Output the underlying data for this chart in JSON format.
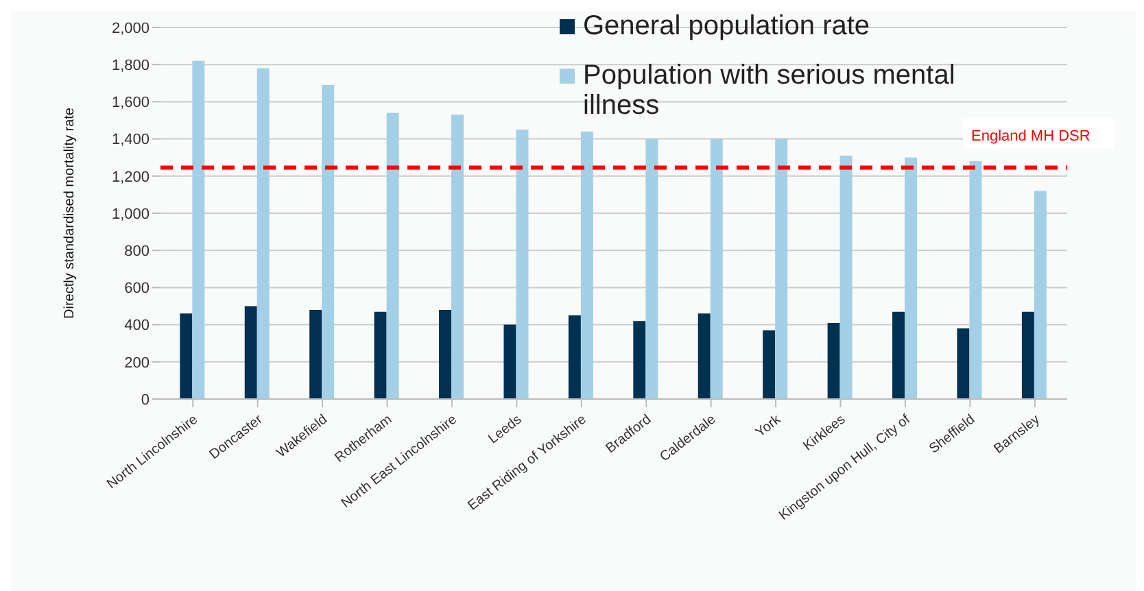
{
  "chart_data": {
    "type": "bar",
    "ylabel": "Directly standardised mortality rate",
    "categories": [
      "North Lincolnshire",
      "Doncaster",
      "Wakefield",
      "Rotherham",
      "North East Lincolnshire",
      "Leeds",
      "East Riding of Yorkshire",
      "Bradford",
      "Calderdale",
      "York",
      "Kirklees",
      "Kingston upon Hull, City of",
      "Sheffield",
      "Barnsley"
    ],
    "series": [
      {
        "name": "General population rate",
        "color": "#003150",
        "values": [
          460,
          500,
          480,
          470,
          480,
          400,
          450,
          420,
          460,
          370,
          410,
          470,
          380,
          470
        ]
      },
      {
        "name": "Population with serious mental illness",
        "color": "#a3d0e7",
        "values": [
          1820,
          1780,
          1690,
          1540,
          1530,
          1450,
          1440,
          1400,
          1400,
          1400,
          1310,
          1300,
          1280,
          1120
        ]
      }
    ],
    "ylim": [
      0,
      2000
    ],
    "yticks": [
      {
        "value": 0,
        "label": "0"
      },
      {
        "value": 200,
        "label": "200"
      },
      {
        "value": 400,
        "label": "400"
      },
      {
        "value": 600,
        "label": "600"
      },
      {
        "value": 800,
        "label": "800"
      },
      {
        "value": 1000,
        "label": "1,000"
      },
      {
        "value": 1200,
        "label": "1,200"
      },
      {
        "value": 1400,
        "label": "1,400"
      },
      {
        "value": 1600,
        "label": "1,600"
      },
      {
        "value": 1800,
        "label": "1,800"
      },
      {
        "value": 2000,
        "label": "2,000"
      }
    ],
    "ref_lines": [
      {
        "axis": "y",
        "value": 1245,
        "label": "England  MH DSR",
        "color": "#ff0000",
        "line_style": "dashed"
      }
    ],
    "grid": "y",
    "legend": "top right"
  }
}
